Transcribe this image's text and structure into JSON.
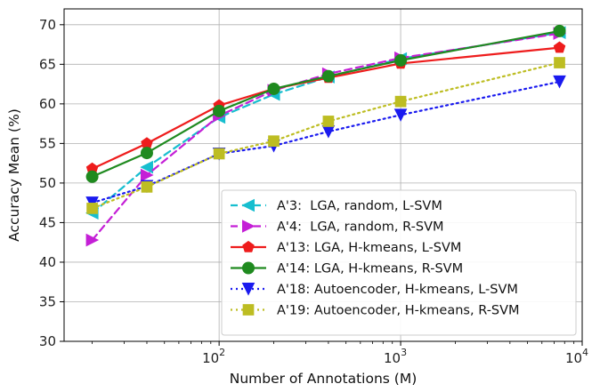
{
  "chart_data": {
    "type": "line",
    "xlabel": "Number of Annotations (M)",
    "ylabel": "Accuracy Mean (%)",
    "xscale": "log",
    "xlim": [
      14,
      10000
    ],
    "ylim": [
      30,
      72
    ],
    "yticks": [
      30,
      35,
      40,
      45,
      50,
      55,
      60,
      65,
      70
    ],
    "ytick_labels": [
      "30",
      "35",
      "40",
      "45",
      "50",
      "55",
      "60",
      "65",
      "70"
    ],
    "xticks": [
      {
        "value": 100,
        "base": "10",
        "exp": "2"
      },
      {
        "value": 1000,
        "base": "10",
        "exp": "3"
      },
      {
        "value": 10000,
        "base": "10",
        "exp": "4"
      }
    ],
    "grid": true,
    "legend_position": "lower-right",
    "x": [
      20,
      40,
      100,
      200,
      400,
      1000,
      7500
    ],
    "series": [
      {
        "name": "A'3:  LGA, random, L-SVM",
        "values": [
          46.2,
          52.0,
          58.3,
          61.2,
          63.4,
          65.7,
          69.0
        ],
        "color": "#17becf",
        "linestyle": "dashed",
        "marker": "triangle-left"
      },
      {
        "name": "A'4:  LGA, random, R-SVM",
        "values": [
          42.8,
          51.0,
          58.5,
          61.7,
          63.8,
          65.8,
          68.9
        ],
        "color": "#c41fd6",
        "linestyle": "dashed",
        "marker": "triangle-right"
      },
      {
        "name": "A'13: LGA, H-kmeans, L-SVM",
        "values": [
          51.8,
          55.0,
          59.8,
          61.9,
          63.3,
          65.1,
          67.1
        ],
        "color": "#ee1c1c",
        "linestyle": "solid",
        "marker": "pentagon"
      },
      {
        "name": "A'14: LGA, H-kmeans, R-SVM",
        "values": [
          50.8,
          53.8,
          59.1,
          61.9,
          63.5,
          65.5,
          69.2
        ],
        "color": "#1f8a1f",
        "linestyle": "solid",
        "marker": "circle"
      },
      {
        "name": "A'18: Autoencoder, H-kmeans, L-SVM",
        "values": [
          47.5,
          49.6,
          53.7,
          54.7,
          56.5,
          58.6,
          62.8
        ],
        "color": "#1a1aef",
        "linestyle": "dotted",
        "marker": "triangle-down"
      },
      {
        "name": "A'19: Autoencoder, H-kmeans, R-SVM",
        "values": [
          46.8,
          49.5,
          53.7,
          55.3,
          57.8,
          60.3,
          65.2
        ],
        "color": "#bdbd22",
        "linestyle": "dotted",
        "marker": "square"
      }
    ]
  }
}
